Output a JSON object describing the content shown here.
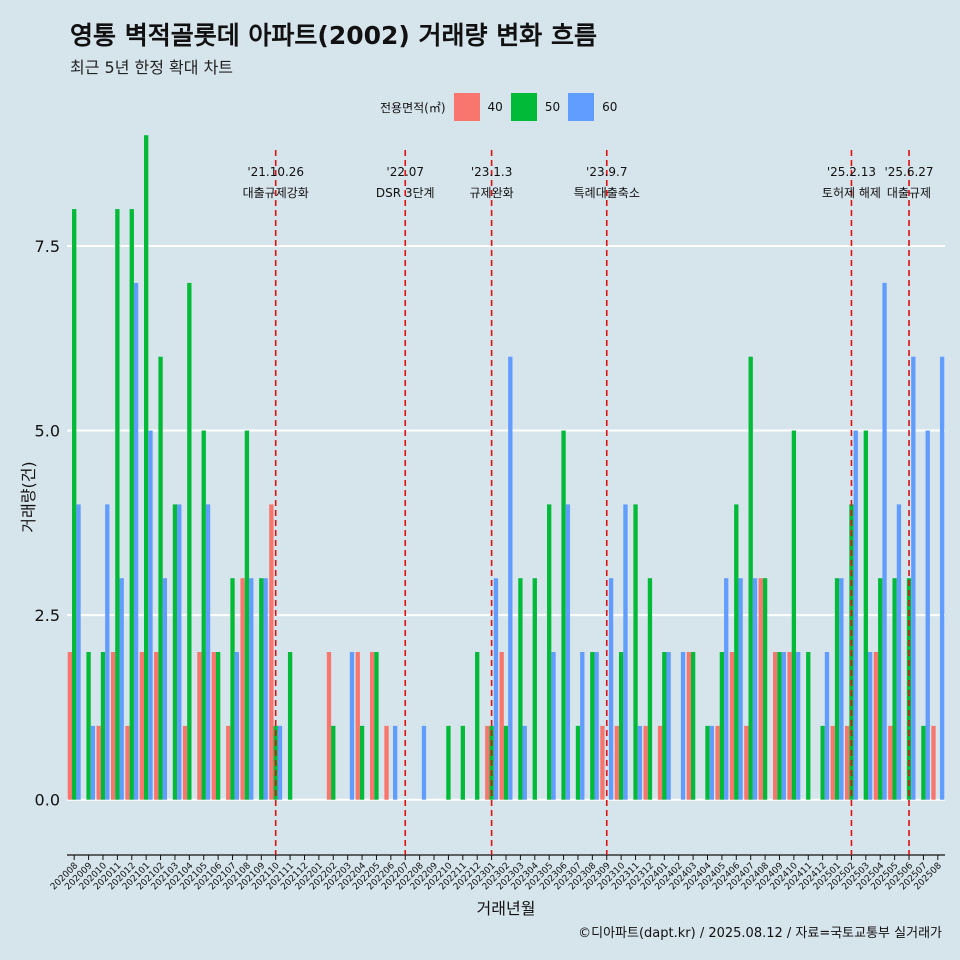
{
  "title": "영통 벽적골롯데 아파트(2002) 거래량 변화 흐름",
  "subtitle": "최근 5년 한정 확대 차트",
  "caption": "©디아파트(dapt.kr) / 2025.08.12 / 자료=국토교통부 실거래가",
  "legend": {
    "title": "전용면적(㎡)",
    "items": [
      {
        "label": "40",
        "color": "#f8766d"
      },
      {
        "label": "50",
        "color": "#00ba38"
      },
      {
        "label": "60",
        "color": "#619cff"
      }
    ]
  },
  "chart_data": {
    "type": "bar",
    "xlabel": "거래년월",
    "ylabel": "거래량(건)",
    "ylim": [
      -0.6,
      8.8
    ],
    "yticks": [
      0.0,
      2.5,
      5.0,
      7.5
    ],
    "ytick_labels": [
      "0.0",
      "2.5",
      "5.0",
      "7.5"
    ],
    "grid": true,
    "categories": [
      "202008",
      "202009",
      "202010",
      "202011",
      "202012",
      "202101",
      "202102",
      "202103",
      "202104",
      "202105",
      "202106",
      "202107",
      "202108",
      "202109",
      "202110",
      "202111",
      "202112",
      "202201",
      "202202",
      "202203",
      "202204",
      "202205",
      "202206",
      "202207",
      "202208",
      "202209",
      "202210",
      "202211",
      "202212",
      "202301",
      "202302",
      "202303",
      "202304",
      "202305",
      "202306",
      "202307",
      "202308",
      "202309",
      "202310",
      "202311",
      "202312",
      "202401",
      "202402",
      "202403",
      "202404",
      "202405",
      "202406",
      "202407",
      "202408",
      "202409",
      "202410",
      "202411",
      "202412",
      "202501",
      "202502",
      "202503",
      "202504",
      "202505",
      "202506",
      "202507",
      "202508"
    ],
    "series": [
      {
        "name": "40",
        "values": [
          2,
          0,
          1,
          2,
          1,
          2,
          2,
          0,
          1,
          2,
          2,
          1,
          3,
          0,
          4,
          0,
          0,
          0,
          2,
          0,
          2,
          2,
          1,
          0,
          0,
          0,
          0,
          0,
          0,
          1,
          2,
          0,
          0,
          0,
          0,
          0,
          0,
          1,
          1,
          0,
          1,
          1,
          0,
          2,
          0,
          1,
          2,
          1,
          3,
          2,
          2,
          0,
          0,
          1,
          1,
          0,
          2,
          1,
          0,
          0,
          1
        ]
      },
      {
        "name": "50",
        "values": [
          8,
          2,
          2,
          8,
          8,
          9,
          6,
          4,
          7,
          5,
          2,
          3,
          5,
          3,
          1,
          2,
          0,
          0,
          1,
          0,
          1,
          2,
          0,
          0,
          0,
          0,
          1,
          1,
          2,
          1,
          1,
          3,
          3,
          4,
          5,
          1,
          2,
          0,
          2,
          4,
          3,
          2,
          0,
          2,
          1,
          2,
          4,
          6,
          3,
          2,
          5,
          2,
          1,
          3,
          4,
          5,
          3,
          3,
          3,
          1,
          0
        ]
      },
      {
        "name": "60",
        "values": [
          4,
          1,
          4,
          3,
          7,
          5,
          3,
          4,
          0,
          4,
          0,
          2,
          3,
          3,
          1,
          0,
          0,
          0,
          0,
          2,
          0,
          0,
          1,
          0,
          1,
          0,
          0,
          0,
          0,
          3,
          6,
          1,
          0,
          2,
          4,
          2,
          2,
          3,
          4,
          1,
          0,
          2,
          2,
          0,
          1,
          3,
          3,
          3,
          0,
          2,
          2,
          0,
          2,
          3,
          5,
          2,
          7,
          4,
          6,
          5,
          6
        ]
      }
    ],
    "events": [
      {
        "date": "'21.10.26",
        "label": "대출규제강화",
        "index": 14
      },
      {
        "date": "'22.07",
        "label": "DSR 3단계",
        "index": 23
      },
      {
        "date": "'23.1.3",
        "label": "규제완화",
        "index": 29
      },
      {
        "date": "'23.9.7",
        "label": "특례대출축소",
        "index": 37
      },
      {
        "date": "'25.2.13",
        "label": "토허제 해제",
        "index": 54
      },
      {
        "date": "'25.6.27",
        "label": "대출규제",
        "index": 58
      }
    ]
  }
}
